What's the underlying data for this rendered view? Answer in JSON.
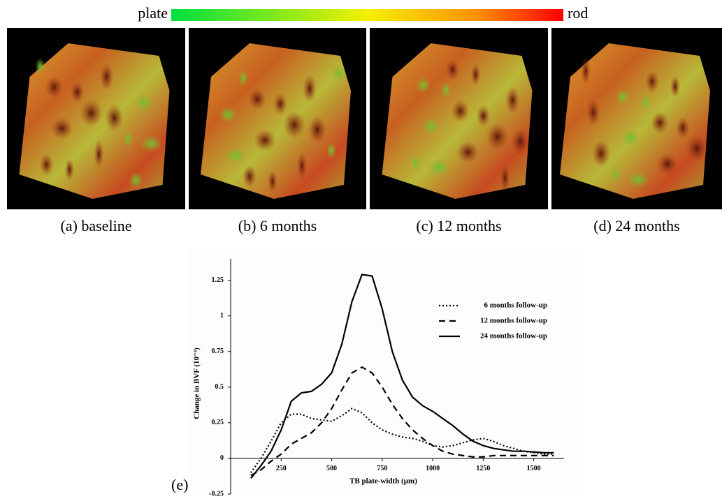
{
  "colorbar": {
    "left": "plate",
    "right": "rod"
  },
  "panels": [
    {
      "caption": "(a)  baseline"
    },
    {
      "caption": "(b)  6 months"
    },
    {
      "caption": "(c)  12 months"
    },
    {
      "caption": "(d)  24 months"
    }
  ],
  "chart_label": "(e)",
  "chart_data": {
    "type": "line",
    "x_label": "TB plate-width (µm)",
    "y_label": "Change in BVF (10⁻³)",
    "x": [
      100,
      150,
      200,
      250,
      300,
      350,
      400,
      450,
      500,
      550,
      600,
      650,
      700,
      750,
      800,
      850,
      900,
      950,
      1000,
      1050,
      1100,
      1150,
      1200,
      1250,
      1300,
      1350,
      1400,
      1450,
      1500,
      1550,
      1600
    ],
    "series": [
      {
        "name": "6 months follow-up",
        "color": "#000000",
        "style": "dotted",
        "values": [
          -0.1,
          0,
          0.12,
          0.25,
          0.31,
          0.31,
          0.28,
          0.27,
          0.26,
          0.3,
          0.35,
          0.32,
          0.25,
          0.2,
          0.17,
          0.15,
          0.14,
          0.12,
          0.09,
          0.08,
          0.09,
          0.11,
          0.13,
          0.14,
          0.12,
          0.09,
          0.07,
          0.05,
          0.04,
          0.03,
          0.03
        ]
      },
      {
        "name": "12 months follow-up",
        "color": "#000000",
        "style": "dashed",
        "values": [
          -0.12,
          -0.08,
          -0.02,
          0.03,
          0.1,
          0.14,
          0.18,
          0.25,
          0.35,
          0.48,
          0.6,
          0.64,
          0.6,
          0.5,
          0.38,
          0.28,
          0.2,
          0.14,
          0.09,
          0.05,
          0.03,
          0.02,
          0.01,
          0.01,
          0.02,
          0.02,
          0.02,
          0.02,
          0.02,
          0.02,
          0.02
        ]
      },
      {
        "name": "24 months follow-up",
        "color": "#000000",
        "style": "solid",
        "values": [
          -0.14,
          -0.05,
          0.05,
          0.2,
          0.4,
          0.46,
          0.47,
          0.52,
          0.6,
          0.8,
          1.1,
          1.29,
          1.28,
          1.05,
          0.75,
          0.55,
          0.43,
          0.37,
          0.33,
          0.28,
          0.23,
          0.17,
          0.12,
          0.09,
          0.07,
          0.06,
          0.05,
          0.05,
          0.045,
          0.04,
          0.04
        ]
      }
    ],
    "xlim": [
      0,
      1650
    ],
    "xticks": [
      250,
      500,
      750,
      1000,
      1250,
      1500
    ],
    "ylim": [
      -0.25,
      1.4
    ],
    "yticks": [
      -0.25,
      0,
      0.25,
      0.5,
      0.75,
      1,
      1.25
    ],
    "legend": "upper right"
  }
}
